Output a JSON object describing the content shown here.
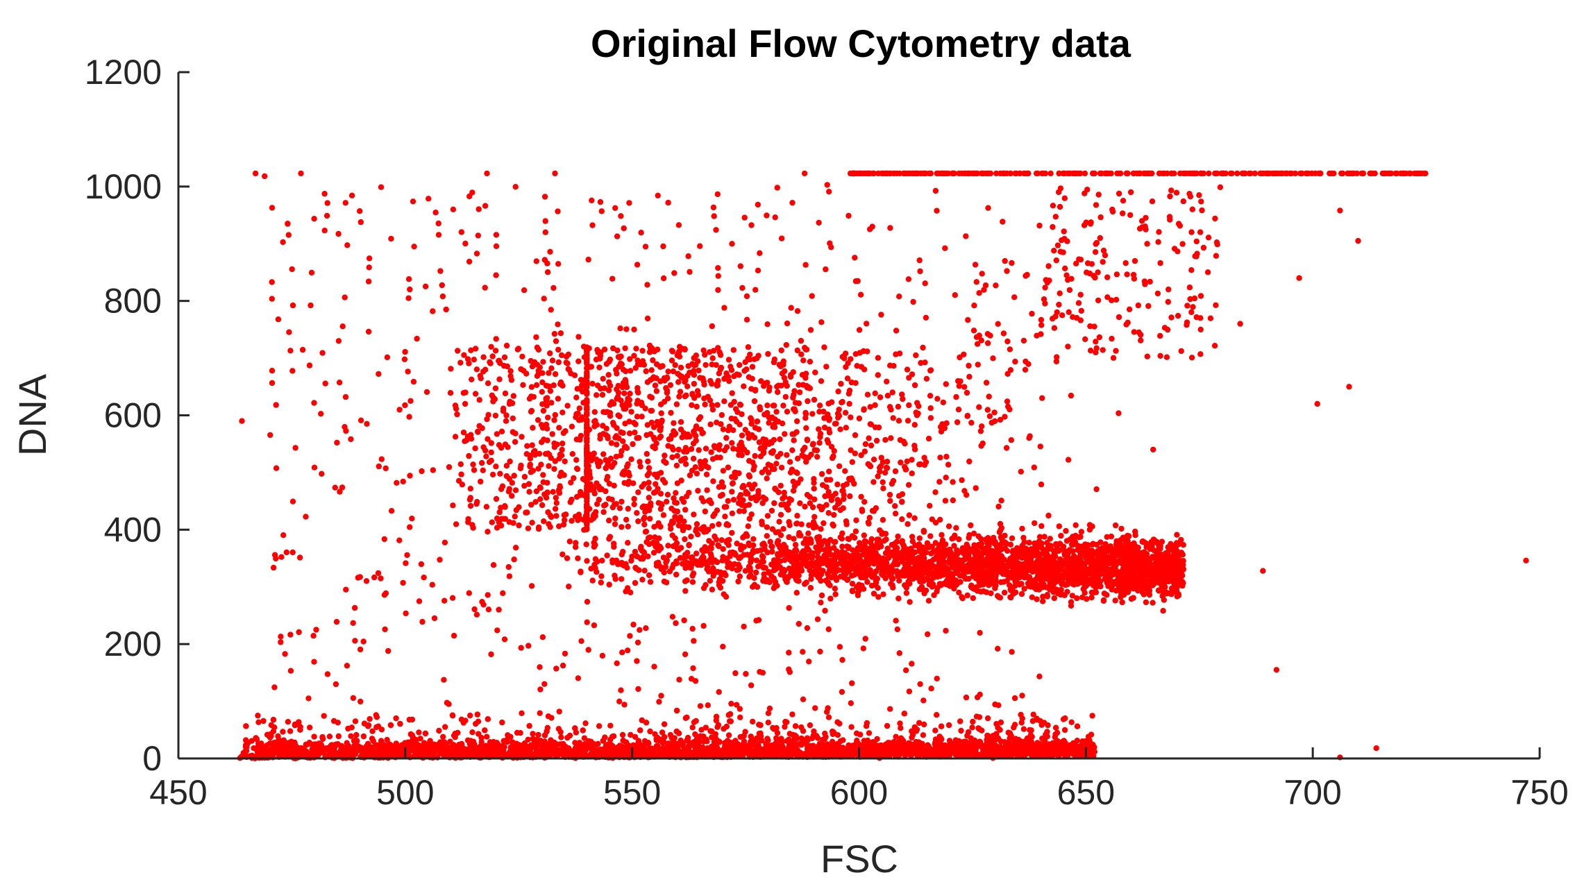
{
  "chart_data": {
    "type": "scatter",
    "title": "Original Flow Cytometry data",
    "xlabel": "FSC",
    "ylabel": "DNA",
    "xlim": [
      450,
      750
    ],
    "ylim": [
      0,
      1200
    ],
    "x_ticks": [
      "450",
      "500",
      "550",
      "600",
      "650",
      "700",
      "750"
    ],
    "y_ticks": [
      "0",
      "200",
      "400",
      "600",
      "800",
      "1000",
      "1200"
    ],
    "grid": false,
    "legend": "none",
    "marker_color": "#ff0000",
    "series": [
      {
        "points_described_as_clusters": true,
        "clusters": [
          {
            "region": "G0/G1 band",
            "x_range": [
              463,
              652
            ],
            "y_center": 10,
            "y_spread": 15,
            "density": "very high"
          },
          {
            "region": "G2/M band",
            "x_range": [
              510,
              680
            ],
            "y_center": 340,
            "y_spread": 25,
            "density": "high"
          },
          {
            "region": "upper diffuse cloud",
            "x_range": [
              540,
              680
            ],
            "y_range": [
              400,
              720
            ],
            "density": "medium"
          },
          {
            "region": "saturation line",
            "x_range": [
              598,
              725
            ],
            "y_value": 1023,
            "density": "high"
          },
          {
            "region": "scattered outliers",
            "x_range": [
              463,
              750
            ],
            "y_range": [
              0,
              1023
            ],
            "density": "low"
          }
        ],
        "notable_points": [
          {
            "x": 467,
            "y": 1023
          },
          {
            "x": 469,
            "y": 1018
          },
          {
            "x": 477,
            "y": 1023
          },
          {
            "x": 518,
            "y": 1023
          },
          {
            "x": 533,
            "y": 1023
          },
          {
            "x": 543,
            "y": 973
          },
          {
            "x": 588,
            "y": 1023
          },
          {
            "x": 593,
            "y": 1003
          },
          {
            "x": 582,
            "y": 998
          },
          {
            "x": 572,
            "y": 900
          },
          {
            "x": 520,
            "y": 845
          },
          {
            "x": 509,
            "y": 785
          },
          {
            "x": 464,
            "y": 590
          },
          {
            "x": 747,
            "y": 346
          },
          {
            "x": 714,
            "y": 18
          },
          {
            "x": 706,
            "y": 2
          },
          {
            "x": 692,
            "y": 155
          },
          {
            "x": 701,
            "y": 620
          },
          {
            "x": 708,
            "y": 650
          },
          {
            "x": 697,
            "y": 840
          },
          {
            "x": 710,
            "y": 905
          },
          {
            "x": 706,
            "y": 958
          },
          {
            "x": 684,
            "y": 760
          },
          {
            "x": 689,
            "y": 328
          }
        ]
      }
    ]
  }
}
